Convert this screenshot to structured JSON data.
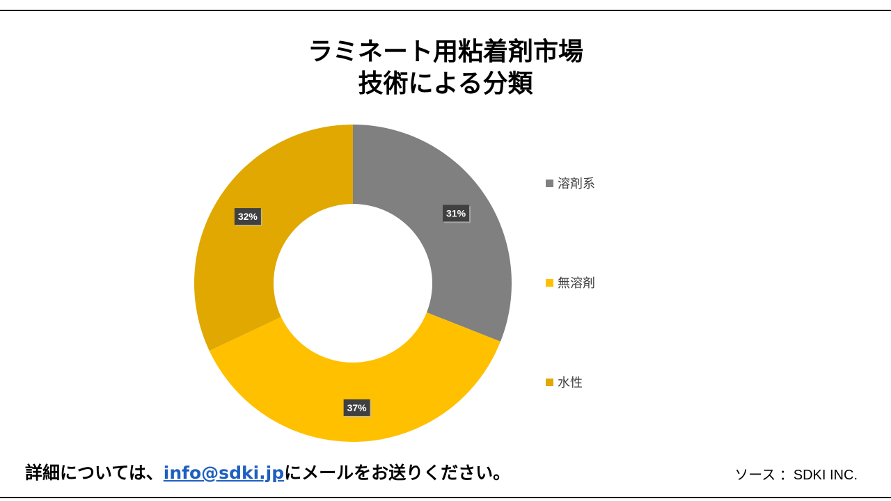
{
  "title_lines": [
    "ラミネート用粘着剤市場",
    "技術による分類"
  ],
  "chart_data": {
    "type": "pie",
    "donut": true,
    "title": "ラミネート用粘着剤市場 技術による分類",
    "categories": [
      "溶剤系",
      "無溶剤",
      "水性"
    ],
    "values": [
      31,
      37,
      32
    ],
    "labels": [
      "31%",
      "37%",
      "32%"
    ],
    "colors": [
      "#808080",
      "#ffc000",
      "#e0a800"
    ],
    "legend_position": "right"
  },
  "footer": {
    "prefix": "詳細については、",
    "email": "info@sdki.jp",
    "suffix": "にメールをお送りください。"
  },
  "source": "ソース ：SDKI INC."
}
